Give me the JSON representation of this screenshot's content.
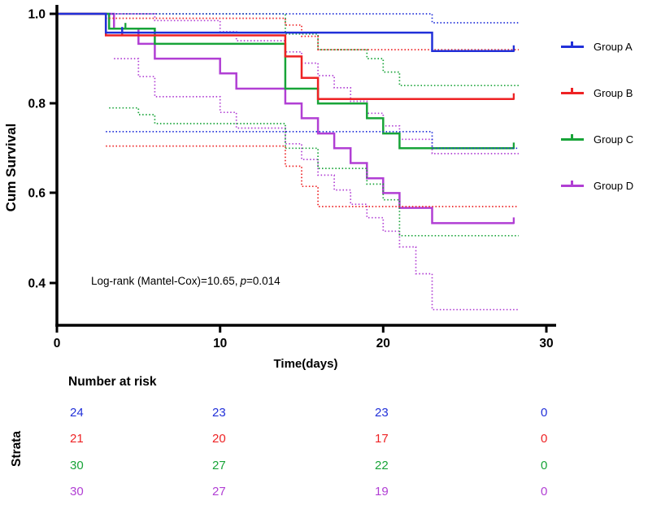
{
  "chart_data": {
    "type": "line",
    "subtype": "kaplan_meier_survival",
    "title": "",
    "xlabel": "Time(days)",
    "ylabel": "Cum Survival",
    "xlim": [
      0,
      30
    ],
    "ylim": [
      0.305,
      1.0
    ],
    "xticks": [
      0,
      10,
      20,
      30
    ],
    "xtick_labels": [
      "0",
      "10",
      "20",
      "30"
    ],
    "yticks": [
      1.0,
      0.8,
      0.6,
      0.4
    ],
    "ytick_labels": [
      "1.0",
      "0.8",
      "0.6",
      "0.4"
    ],
    "grid": false,
    "legend_position": "right",
    "ci_style": "dotted",
    "annotation": {
      "prefix": "Log-rank (Mantel-Cox)=10.65,",
      "italic": "p",
      "suffix": "=0.014"
    },
    "groups": [
      {
        "name": "Group A",
        "color": "#2130d9",
        "survival": [
          [
            0,
            1.0
          ],
          [
            3,
            1.0
          ],
          [
            3,
            0.958
          ],
          [
            23,
            0.958
          ],
          [
            23,
            0.917
          ],
          [
            28,
            0.917
          ]
        ],
        "ci_upper": [
          [
            3,
            1.0
          ],
          [
            23,
            1.0
          ],
          [
            23,
            0.98
          ],
          [
            28.3,
            0.98
          ]
        ],
        "ci_lower": [
          [
            3,
            0.737
          ],
          [
            23,
            0.737
          ],
          [
            23,
            0.7
          ],
          [
            28.3,
            0.7
          ]
        ],
        "censors": [
          [
            4,
            0.958
          ],
          [
            28,
            0.917
          ]
        ],
        "at_risk": [
          24,
          23,
          23,
          0
        ]
      },
      {
        "name": "Group B",
        "color": "#ee2224",
        "survival": [
          [
            0,
            1.0
          ],
          [
            3,
            1.0
          ],
          [
            3,
            0.952
          ],
          [
            14,
            0.952
          ],
          [
            14,
            0.905
          ],
          [
            15,
            0.905
          ],
          [
            15,
            0.857
          ],
          [
            16,
            0.857
          ],
          [
            16,
            0.81
          ],
          [
            28,
            0.81
          ]
        ],
        "ci_upper": [
          [
            3,
            0.99
          ],
          [
            14,
            0.99
          ],
          [
            14,
            0.975
          ],
          [
            15,
            0.975
          ],
          [
            15,
            0.95
          ],
          [
            16,
            0.95
          ],
          [
            16,
            0.92
          ],
          [
            28.3,
            0.92
          ]
        ],
        "ci_lower": [
          [
            3,
            0.705
          ],
          [
            14,
            0.705
          ],
          [
            14,
            0.66
          ],
          [
            15,
            0.66
          ],
          [
            15,
            0.615
          ],
          [
            16,
            0.615
          ],
          [
            16,
            0.57
          ],
          [
            28.3,
            0.57
          ]
        ],
        "censors": [
          [
            4,
            0.952
          ],
          [
            28,
            0.81
          ]
        ],
        "at_risk": [
          21,
          20,
          17,
          0
        ]
      },
      {
        "name": "Group C",
        "color": "#18a438",
        "survival": [
          [
            0,
            1.0
          ],
          [
            3.2,
            1.0
          ],
          [
            3.2,
            0.967
          ],
          [
            6,
            0.967
          ],
          [
            6,
            0.933
          ],
          [
            14,
            0.933
          ],
          [
            14,
            0.833
          ],
          [
            16,
            0.833
          ],
          [
            16,
            0.8
          ],
          [
            19,
            0.8
          ],
          [
            19,
            0.767
          ],
          [
            20,
            0.767
          ],
          [
            20,
            0.733
          ],
          [
            21,
            0.733
          ],
          [
            21,
            0.7
          ],
          [
            28,
            0.7
          ]
        ],
        "ci_upper": [
          [
            3.2,
            1.0
          ],
          [
            14,
            1.0
          ],
          [
            14,
            0.955
          ],
          [
            16,
            0.955
          ],
          [
            16,
            0.92
          ],
          [
            19,
            0.92
          ],
          [
            19,
            0.9
          ],
          [
            20,
            0.9
          ],
          [
            20,
            0.87
          ],
          [
            21,
            0.87
          ],
          [
            21,
            0.84
          ],
          [
            28.3,
            0.84
          ]
        ],
        "ci_lower": [
          [
            3.2,
            0.79
          ],
          [
            5,
            0.79
          ],
          [
            5,
            0.775
          ],
          [
            6,
            0.775
          ],
          [
            6,
            0.755
          ],
          [
            14,
            0.755
          ],
          [
            14,
            0.7
          ],
          [
            16,
            0.7
          ],
          [
            16,
            0.655
          ],
          [
            19,
            0.655
          ],
          [
            19,
            0.62
          ],
          [
            20,
            0.62
          ],
          [
            20,
            0.585
          ],
          [
            21,
            0.585
          ],
          [
            21,
            0.505
          ],
          [
            28.3,
            0.505
          ]
        ],
        "censors": [
          [
            4.2,
            0.967
          ],
          [
            28,
            0.7
          ]
        ],
        "at_risk": [
          30,
          27,
          22,
          0
        ]
      },
      {
        "name": "Group D",
        "color": "#b13fd4",
        "survival": [
          [
            0,
            1.0
          ],
          [
            3.5,
            1.0
          ],
          [
            3.5,
            0.967
          ],
          [
            5,
            0.967
          ],
          [
            5,
            0.933
          ],
          [
            6,
            0.933
          ],
          [
            6,
            0.9
          ],
          [
            10,
            0.9
          ],
          [
            10,
            0.867
          ],
          [
            11,
            0.867
          ],
          [
            11,
            0.833
          ],
          [
            14,
            0.833
          ],
          [
            14,
            0.8
          ],
          [
            15,
            0.8
          ],
          [
            15,
            0.767
          ],
          [
            16,
            0.767
          ],
          [
            16,
            0.733
          ],
          [
            17,
            0.733
          ],
          [
            17,
            0.7
          ],
          [
            18,
            0.7
          ],
          [
            18,
            0.667
          ],
          [
            19,
            0.667
          ],
          [
            19,
            0.633
          ],
          [
            20,
            0.633
          ],
          [
            20,
            0.6
          ],
          [
            21,
            0.6
          ],
          [
            21,
            0.567
          ],
          [
            23,
            0.567
          ],
          [
            23,
            0.533
          ],
          [
            28,
            0.533
          ]
        ],
        "ci_upper": [
          [
            3.5,
            1.0
          ],
          [
            6,
            1.0
          ],
          [
            6,
            0.985
          ],
          [
            10,
            0.985
          ],
          [
            10,
            0.96
          ],
          [
            11,
            0.96
          ],
          [
            11,
            0.94
          ],
          [
            14,
            0.94
          ],
          [
            14,
            0.915
          ],
          [
            15,
            0.915
          ],
          [
            15,
            0.89
          ],
          [
            16,
            0.89
          ],
          [
            16,
            0.862
          ],
          [
            17,
            0.862
          ],
          [
            17,
            0.835
          ],
          [
            18,
            0.835
          ],
          [
            18,
            0.805
          ],
          [
            19,
            0.805
          ],
          [
            19,
            0.778
          ],
          [
            20,
            0.778
          ],
          [
            20,
            0.75
          ],
          [
            21,
            0.75
          ],
          [
            21,
            0.72
          ],
          [
            23,
            0.72
          ],
          [
            23,
            0.688
          ],
          [
            28.3,
            0.688
          ]
        ],
        "ci_lower": [
          [
            3.5,
            0.9
          ],
          [
            5,
            0.9
          ],
          [
            5,
            0.86
          ],
          [
            6,
            0.86
          ],
          [
            6,
            0.815
          ],
          [
            10,
            0.815
          ],
          [
            10,
            0.78
          ],
          [
            11,
            0.78
          ],
          [
            11,
            0.745
          ],
          [
            14,
            0.745
          ],
          [
            14,
            0.71
          ],
          [
            15,
            0.71
          ],
          [
            15,
            0.675
          ],
          [
            16,
            0.675
          ],
          [
            16,
            0.64
          ],
          [
            17,
            0.64
          ],
          [
            17,
            0.607
          ],
          [
            18,
            0.607
          ],
          [
            18,
            0.575
          ],
          [
            19,
            0.575
          ],
          [
            19,
            0.545
          ],
          [
            20,
            0.545
          ],
          [
            20,
            0.515
          ],
          [
            21,
            0.515
          ],
          [
            21,
            0.48
          ],
          [
            22,
            0.48
          ],
          [
            22,
            0.42
          ],
          [
            23,
            0.42
          ],
          [
            23,
            0.34
          ],
          [
            28.3,
            0.34
          ]
        ],
        "censors": [
          [
            28,
            0.533
          ]
        ],
        "at_risk": [
          30,
          27,
          19,
          0
        ]
      }
    ],
    "risk_table": {
      "title": "Number at risk",
      "strata_label": "Strata",
      "times": [
        0,
        10,
        20,
        30
      ]
    }
  }
}
